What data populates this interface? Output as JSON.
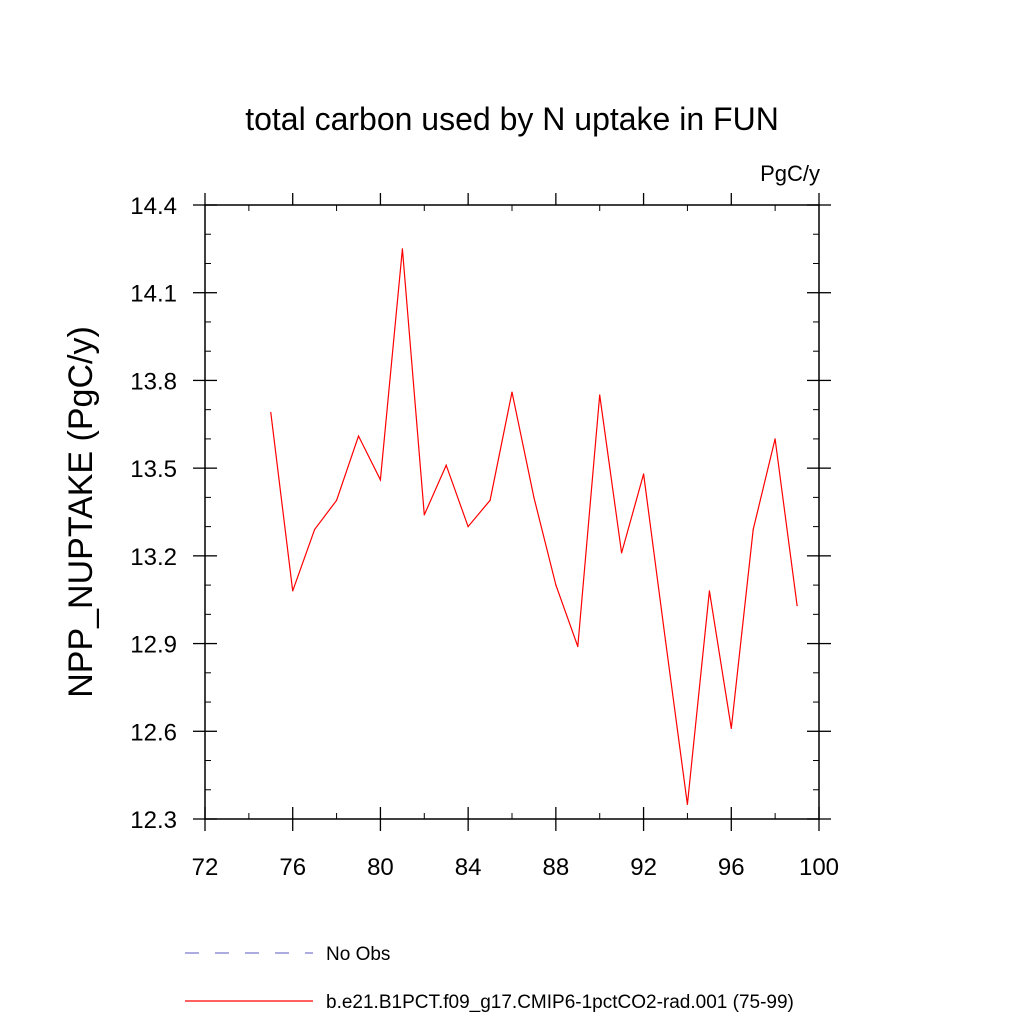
{
  "chart_data": {
    "type": "line",
    "title": "total carbon used by N uptake in FUN",
    "units": "PgC/y",
    "ylabel": "NPP_NUPTAKE  (PgC/y)",
    "xlabel": "",
    "xlim": [
      72,
      100
    ],
    "ylim": [
      12.3,
      14.4
    ],
    "xticks": [
      72,
      76,
      80,
      84,
      88,
      92,
      96,
      100
    ],
    "xtick_labels": [
      "72",
      "76",
      "80",
      "84",
      "88",
      "92",
      "96",
      "100"
    ],
    "yticks": [
      12.3,
      12.6,
      12.9,
      13.2,
      13.5,
      13.8,
      14.1,
      14.4
    ],
    "ytick_labels": [
      "12.3",
      "12.6",
      "12.9",
      "13.2",
      "13.5",
      "13.8",
      "14.1",
      "14.4"
    ],
    "grid": false,
    "legend_position": "bottom",
    "series": [
      {
        "name": "b.e21.B1PCT.f09_g17.CMIP6-1pctCO2-rad.001 (75-99)",
        "color": "#ff0000",
        "style": "solid",
        "x": [
          75,
          76,
          77,
          78,
          79,
          80,
          81,
          82,
          83,
          84,
          85,
          86,
          87,
          88,
          89,
          90,
          91,
          92,
          93,
          94,
          95,
          96,
          97,
          98,
          99
        ],
        "y": [
          13.69,
          13.08,
          13.29,
          13.39,
          13.61,
          13.46,
          14.25,
          13.34,
          13.51,
          13.3,
          13.39,
          13.76,
          13.4,
          13.1,
          12.89,
          13.75,
          13.21,
          13.48,
          12.91,
          12.35,
          13.08,
          12.61,
          13.29,
          13.6,
          13.03
        ]
      }
    ],
    "legend": [
      {
        "label": "No Obs",
        "color": "#7b7bcf",
        "style": "dashed"
      },
      {
        "label": "b.e21.B1PCT.f09_g17.CMIP6-1pctCO2-rad.001 (75-99)",
        "color": "#ff0000",
        "style": "solid"
      }
    ]
  }
}
